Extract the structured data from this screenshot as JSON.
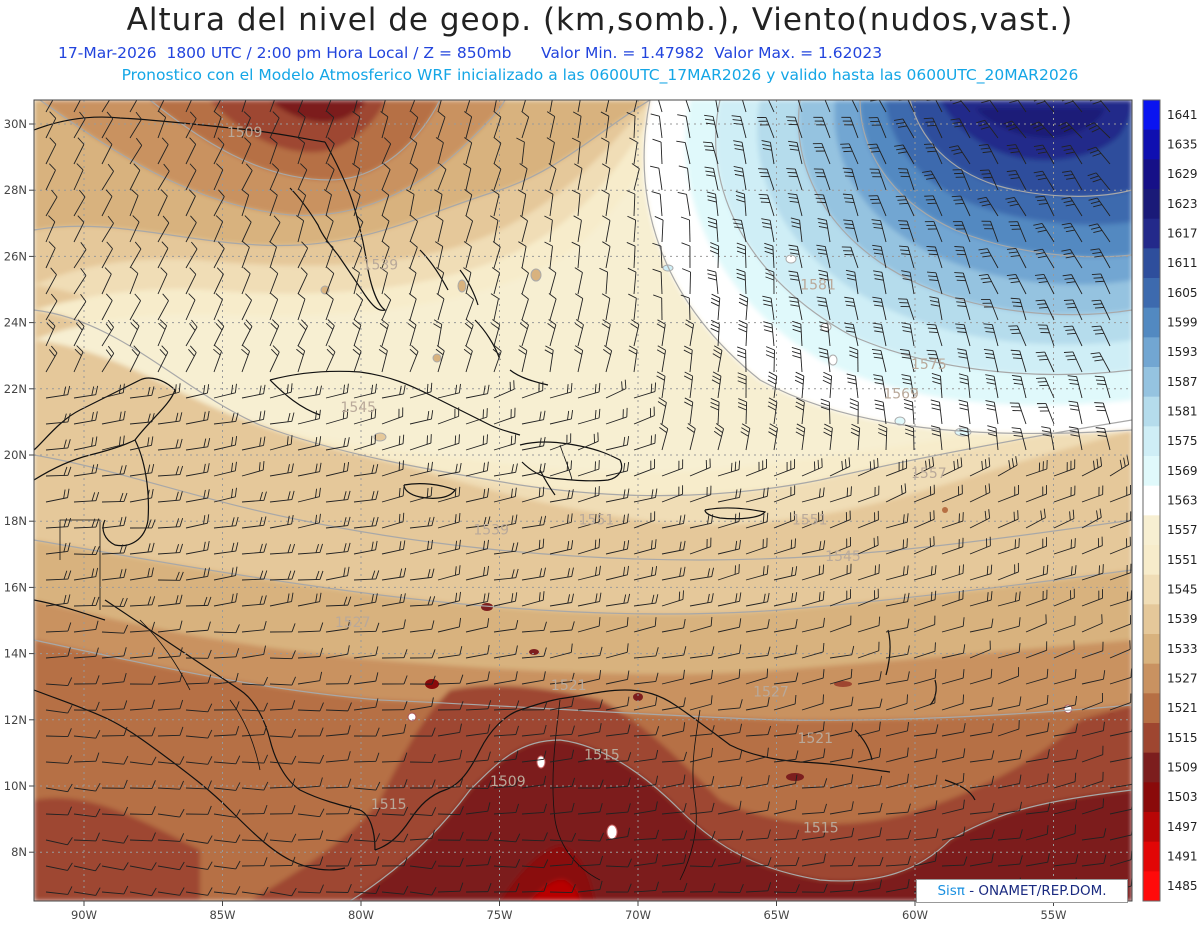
{
  "header": {
    "title": "Altura del nivel de geop. (km,somb.), Viento(nudos,vast.)",
    "subtitle_date": "17-Mar-2026  1800 UTC / 2:00 pm Hora Local / Z = 850mb",
    "subtitle_minmax": "Valor Min. = 1.47982  Valor Max. = 1.62023",
    "subtitle_model": "Pronostico con el Modelo Atmosferico WRF inicializado a las 0600UTC_17MAR2026 y valido hasta las  0600UTC_20MAR2026"
  },
  "map": {
    "lon_ticks": [
      "90W",
      "85W",
      "80W",
      "75W",
      "70W",
      "65W",
      "60W",
      "55W"
    ],
    "lat_ticks": [
      "30N",
      "28N",
      "26N",
      "24N",
      "22N",
      "20N",
      "18N",
      "16N",
      "14N",
      "12N",
      "10N",
      "8N"
    ],
    "contour_labels": [
      {
        "text": "1509",
        "lon": -84.2,
        "lat": 29.6
      },
      {
        "text": "1539",
        "lon": -79.3,
        "lat": 25.6
      },
      {
        "text": "1545",
        "lon": -80.1,
        "lat": 21.3
      },
      {
        "text": "1581",
        "lon": -63.5,
        "lat": 25.0
      },
      {
        "text": "1575",
        "lon": -59.5,
        "lat": 22.6
      },
      {
        "text": "1569",
        "lon": -60.5,
        "lat": 21.7
      },
      {
        "text": "1557",
        "lon": -59.5,
        "lat": 19.3
      },
      {
        "text": "1551",
        "lon": -71.5,
        "lat": 17.9
      },
      {
        "text": "1539",
        "lon": -75.3,
        "lat": 17.6
      },
      {
        "text": "1551",
        "lon": -63.8,
        "lat": 17.9
      },
      {
        "text": "1545",
        "lon": -62.6,
        "lat": 16.8
      },
      {
        "text": "1527",
        "lon": -80.3,
        "lat": 14.8
      },
      {
        "text": "1521",
        "lon": -72.5,
        "lat": 12.9
      },
      {
        "text": "1527",
        "lon": -65.2,
        "lat": 12.7
      },
      {
        "text": "1521",
        "lon": -63.6,
        "lat": 11.3
      },
      {
        "text": "1515",
        "lon": -71.3,
        "lat": 10.8
      },
      {
        "text": "1509",
        "lon": -74.7,
        "lat": 10.0
      },
      {
        "text": "1515",
        "lon": -79.0,
        "lat": 9.3
      },
      {
        "text": "1515",
        "lon": -63.4,
        "lat": 8.6
      }
    ]
  },
  "colorbar": {
    "levels": [
      "1641",
      "1635",
      "1629",
      "1623",
      "1617",
      "1611",
      "1605",
      "1599",
      "1593",
      "1587",
      "1581",
      "1575",
      "1569",
      "1563",
      "1557",
      "1551",
      "1545",
      "1539",
      "1533",
      "1527",
      "1521",
      "1515",
      "1509",
      "1503",
      "1497",
      "1491",
      "1485"
    ],
    "colors": [
      "#0a14f0",
      "#0f0fb0",
      "#161087",
      "#1a1a78",
      "#23298a",
      "#2e4e9c",
      "#3d6aae",
      "#5289c1",
      "#72a6d2",
      "#95c3e0",
      "#b5dcec",
      "#cfeef6",
      "#e0f9fb",
      "#ffffff",
      "#f7efd2",
      "#f7eccb",
      "#f0ddb6",
      "#e5c89a",
      "#d8b27e",
      "#c99261",
      "#b66f44",
      "#9e4630",
      "#7c1e1e",
      "#8a0a0a",
      "#b80606",
      "#e20606",
      "#ff0a0a"
    ]
  },
  "credit": {
    "logo": "Sisπ",
    "text": " - ONAMET/REP.DOM."
  },
  "colors": {
    "title": "#222222",
    "subtitle_blue": "#2244dd",
    "subtitle_cyan": "#14a6e6"
  }
}
